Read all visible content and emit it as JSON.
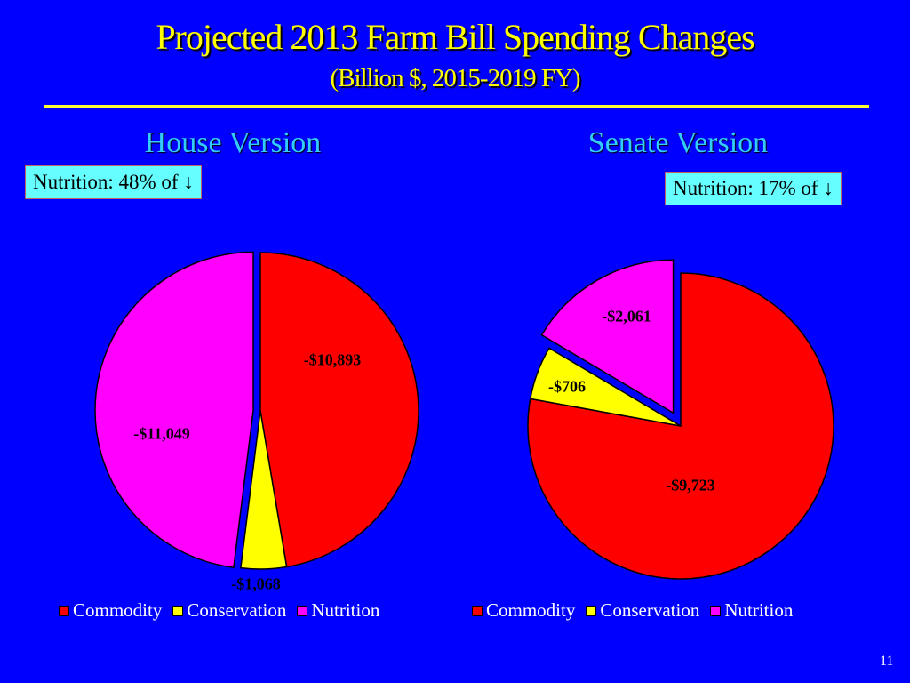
{
  "title": "Projected 2013 Farm Bill Spending Changes",
  "subtitle": "(Billion $, 2015-2019 FY)",
  "page_number": "11",
  "colors": {
    "Commodity": "#ff0000",
    "Conservation": "#ffff00",
    "Nutrition": "#ff00ff",
    "background": "#0000ff",
    "title": "#ffff00"
  },
  "chart_data": [
    {
      "type": "pie",
      "title": "House Version",
      "callout": "Nutrition:  48% of ↓",
      "categories": [
        "Commodity",
        "Conservation",
        "Nutrition"
      ],
      "values": [
        -10893,
        -1068,
        -11049
      ],
      "data_labels": [
        "-$10,893",
        "-$1,068",
        "-$11,049"
      ],
      "exploded": [
        "Nutrition"
      ],
      "legend": "bottom"
    },
    {
      "type": "pie",
      "title": "Senate Version",
      "callout": "Nutrition:  17% of ↓",
      "categories": [
        "Commodity",
        "Conservation",
        "Nutrition"
      ],
      "values": [
        -9723,
        -706,
        -2061
      ],
      "data_labels": [
        "-$9,723",
        "-$706",
        "-$2,061"
      ],
      "exploded": [
        "Nutrition"
      ],
      "legend": "bottom"
    }
  ]
}
